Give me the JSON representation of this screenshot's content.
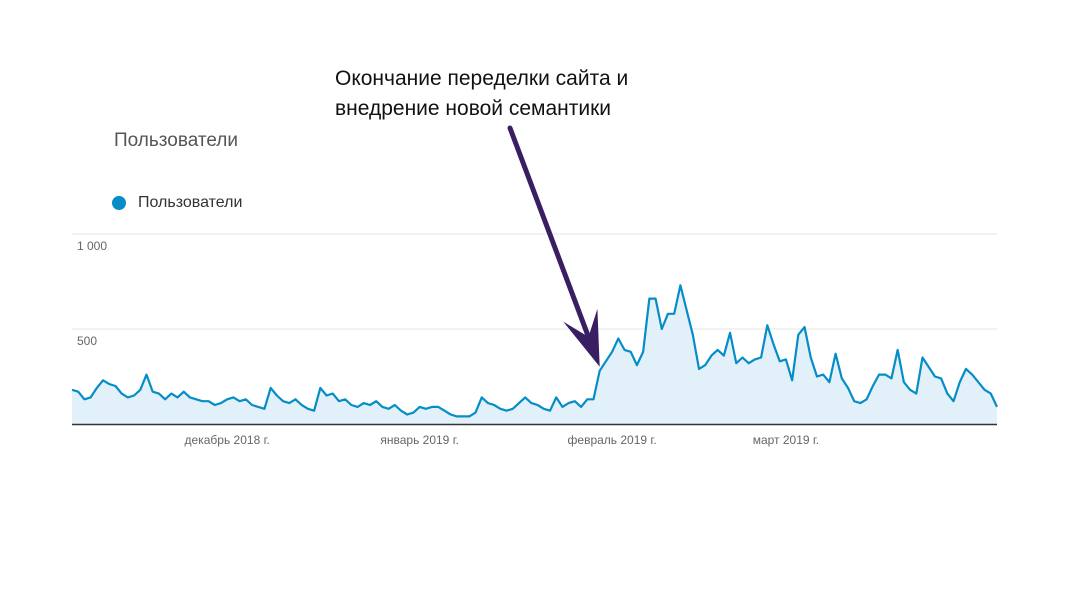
{
  "annotation": {
    "line1": "Окончание переделки сайта и",
    "line2": "внедрение новой семантики"
  },
  "chart_data": {
    "type": "area",
    "title": "Пользователи",
    "legend": [
      {
        "name": "Пользователи",
        "color": "#058dc7"
      }
    ],
    "legend_position": "top-left",
    "ylim": [
      0,
      1000
    ],
    "y_ticks": [
      {
        "value": 1000,
        "label": "1 000"
      },
      {
        "value": 500,
        "label": "500"
      }
    ],
    "x_tick_labels": [
      {
        "label": "декабрь 2018 г.",
        "index": 25
      },
      {
        "label": "январь 2019 г.",
        "index": 56
      },
      {
        "label": "февраль 2019 г.",
        "index": 87
      },
      {
        "label": "март 2019 г.",
        "index": 115
      }
    ],
    "grid": true,
    "colors": {
      "line": "#058dc7",
      "fill": "#e2f1f9",
      "grid": "#e6e6e6",
      "axis": "#333333",
      "arrow": "#3a1e63"
    },
    "annotation_index": 85,
    "series": [
      {
        "name": "Пользователи",
        "values": [
          180,
          170,
          130,
          140,
          190,
          230,
          210,
          200,
          160,
          140,
          150,
          180,
          260,
          170,
          160,
          130,
          160,
          140,
          170,
          140,
          130,
          120,
          120,
          100,
          110,
          130,
          140,
          120,
          130,
          100,
          90,
          80,
          190,
          150,
          120,
          110,
          130,
          100,
          80,
          70,
          190,
          150,
          160,
          120,
          130,
          100,
          90,
          110,
          100,
          120,
          90,
          80,
          100,
          70,
          50,
          60,
          90,
          80,
          90,
          90,
          70,
          50,
          40,
          40,
          40,
          60,
          140,
          110,
          100,
          80,
          70,
          80,
          110,
          140,
          110,
          100,
          80,
          70,
          140,
          90,
          110,
          120,
          90,
          130,
          130,
          280,
          330,
          380,
          450,
          390,
          380,
          310,
          380,
          660,
          660,
          500,
          580,
          580,
          730,
          600,
          470,
          290,
          310,
          360,
          390,
          360,
          480,
          320,
          350,
          320,
          340,
          350,
          520,
          420,
          330,
          340,
          230,
          470,
          510,
          350,
          250,
          260,
          220,
          370,
          240,
          190,
          120,
          110,
          130,
          200,
          260,
          260,
          240,
          390,
          220,
          180,
          160,
          350,
          300,
          250,
          240,
          160,
          120,
          220,
          290,
          260,
          220,
          180,
          160,
          90
        ]
      }
    ]
  }
}
